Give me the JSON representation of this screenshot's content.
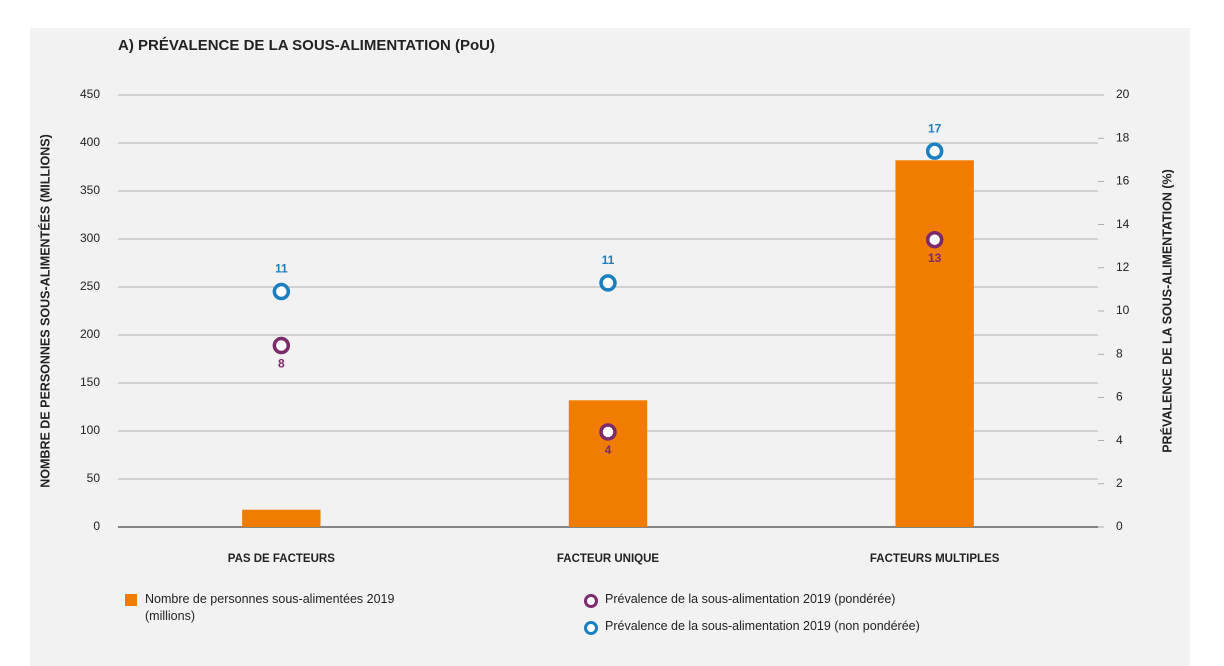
{
  "chart_data": {
    "type": "bar",
    "title": "A) PRÉVALENCE DE LA SOUS-ALIMENTATION (PoU)",
    "ylabel": "NOMBRE DE PERSONNES SOUS-ALIMENTÉES (MILLIONS)",
    "y2label": "PRÉVALENCE DE LA SOUS-ALIMENTATION (%)",
    "categories": [
      "PAS DE FACTEURS",
      "FACTEUR UNIQUE",
      "FACTEURS MULTIPLES"
    ],
    "series": [
      {
        "name": "Nombre de personnes sous-alimentées 2019 (millions)",
        "type": "bar",
        "color": "#f07d00",
        "values": [
          18,
          132,
          382
        ]
      },
      {
        "name": "Prévalence de la sous-alimentation 2019 (pondérée)",
        "type": "scatter",
        "axis": "y2",
        "color": "#7b2a6b",
        "values": [
          8.4,
          4.4,
          13.3
        ],
        "value_labels": [
          "8",
          "4",
          "13"
        ],
        "label_position": "below"
      },
      {
        "name": "Prévalence de la sous-alimentation 2019 (non pondérée)",
        "type": "scatter",
        "axis": "y2",
        "color": "#1a7fc1",
        "values": [
          10.9,
          11.3,
          17.4
        ],
        "value_labels": [
          "11",
          "11",
          "17"
        ],
        "label_position": "above"
      }
    ],
    "ylim": [
      0,
      450
    ],
    "yticks": [
      0,
      50,
      100,
      150,
      200,
      250,
      300,
      350,
      400,
      450
    ],
    "y2lim": [
      0,
      20
    ],
    "y2ticks": [
      0,
      2,
      4,
      6,
      8,
      10,
      12,
      14,
      16,
      18,
      20
    ],
    "grid": true
  }
}
